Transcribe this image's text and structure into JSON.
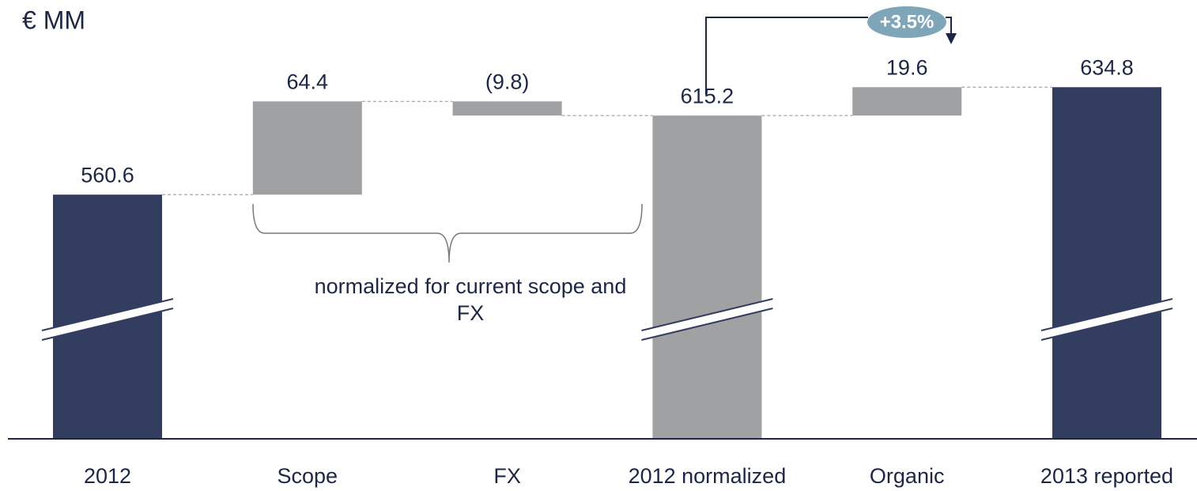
{
  "chart_data": {
    "type": "waterfall",
    "unit_label": "€ MM",
    "categories": [
      "2012",
      "Scope",
      "FX",
      "2012 normalized",
      "Organic",
      "2013 reported"
    ],
    "values": [
      560.6,
      64.4,
      -9.8,
      615.2,
      19.6,
      634.8
    ],
    "value_labels": [
      "560.6",
      "64.4",
      "(9.8)",
      "615.2",
      "19.6",
      "634.8"
    ],
    "totals": [
      true,
      false,
      false,
      true,
      false,
      true
    ],
    "colors": [
      "#333d60",
      "#a0a1a3",
      "#a0a1a3",
      "#a0a1a3",
      "#a0a1a3",
      "#333d60"
    ],
    "ylim": [
      392,
      695
    ],
    "axis_break": true,
    "bracket_annotation": "normalized for current scope and FX",
    "growth_annotation": "+3.5%"
  }
}
